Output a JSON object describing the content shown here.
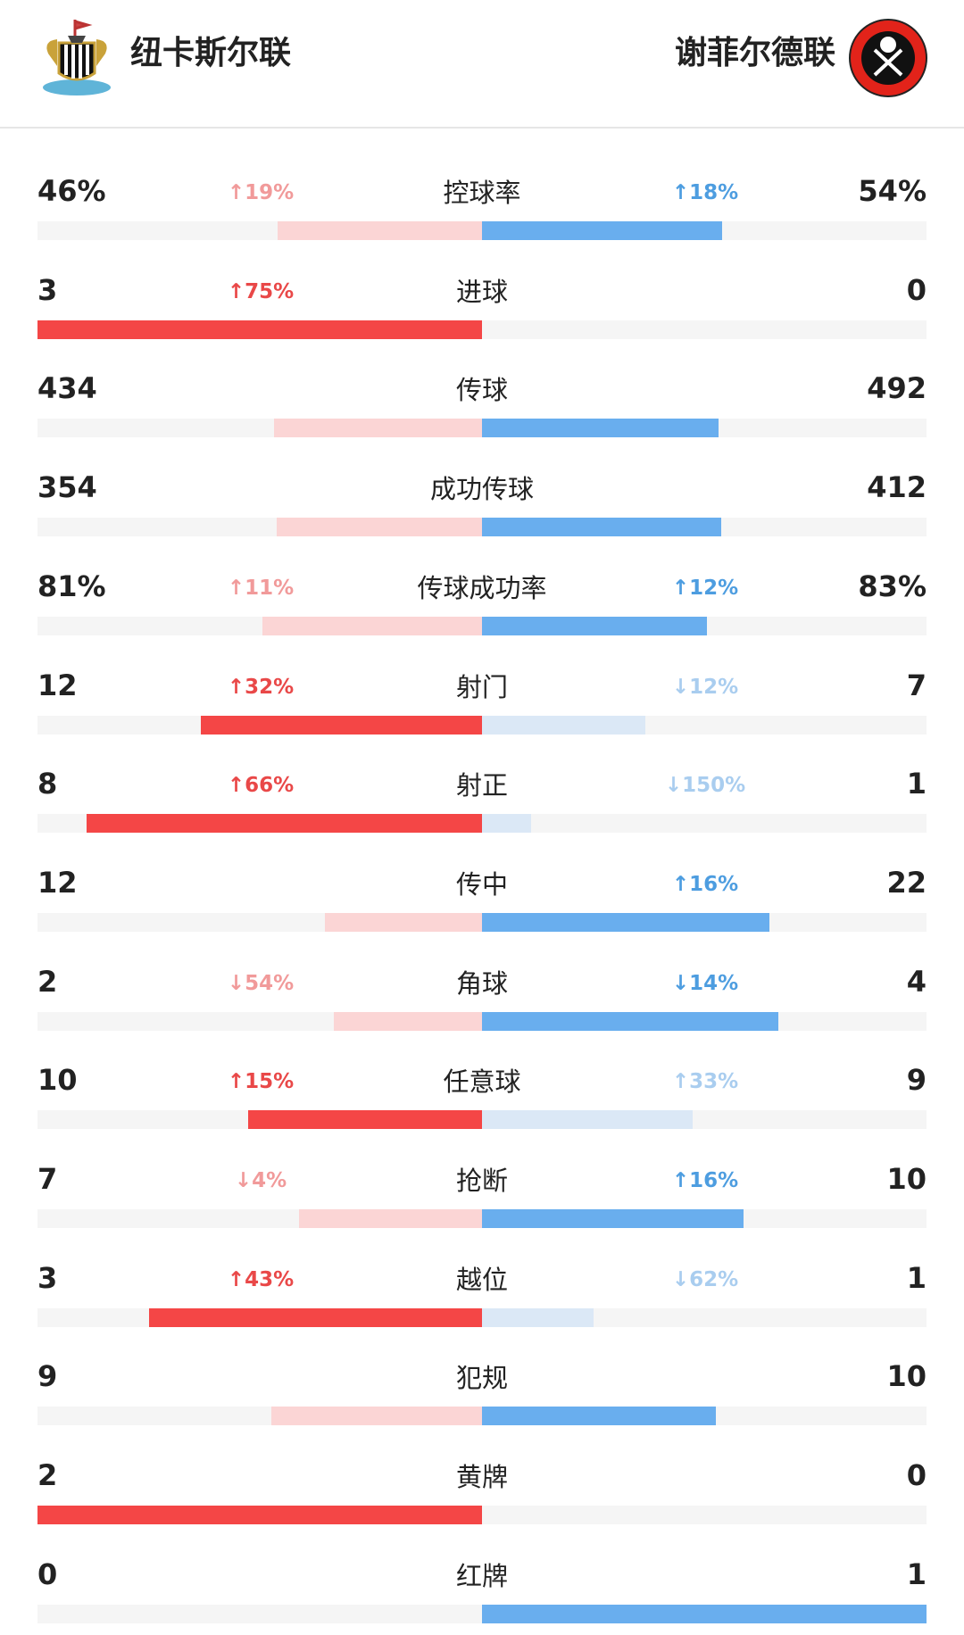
{
  "header": {
    "home": "纽卡斯尔联",
    "away": "谢菲尔德联"
  },
  "rows": [
    {
      "label": "控球率",
      "left": "46%",
      "left_trend": "↑19%",
      "right_trend": "↑18%",
      "right": "54%"
    },
    {
      "label": "进球",
      "left": "3",
      "left_trend": "↑75%",
      "right": "0"
    },
    {
      "label": "传球",
      "left": "434",
      "right": "492"
    },
    {
      "label": "成功传球",
      "left": "354",
      "right": "412"
    },
    {
      "label": "传球成功率",
      "left": "81%",
      "left_trend": "↑11%",
      "right_trend": "↑12%",
      "right": "83%"
    },
    {
      "label": "射门",
      "left": "12",
      "left_trend": "↑32%",
      "right_trend": "↓12%",
      "right": "7"
    },
    {
      "label": "射正",
      "left": "8",
      "left_trend": "↑66%",
      "right_trend": "↓150%",
      "right": "1"
    },
    {
      "label": "传中",
      "left": "12",
      "right_trend": "↑16%",
      "right": "22"
    },
    {
      "label": "角球",
      "left": "2",
      "left_trend": "↓54%",
      "right_trend": "↓14%",
      "right": "4"
    },
    {
      "label": "任意球",
      "left": "10",
      "left_trend": "↑15%",
      "right_trend": "↑33%",
      "right": "9"
    },
    {
      "label": "抢断",
      "left": "7",
      "left_trend": "↓4%",
      "right_trend": "↑16%",
      "right": "10"
    },
    {
      "label": "越位",
      "left": "3",
      "left_trend": "↑43%",
      "right_trend": "↓62%",
      "right": "1"
    },
    {
      "label": "犯规",
      "left": "9",
      "right": "10"
    },
    {
      "label": "黄牌",
      "left": "2",
      "right": "0"
    },
    {
      "label": "红牌",
      "left": "0",
      "right": "1"
    }
  ]
}
